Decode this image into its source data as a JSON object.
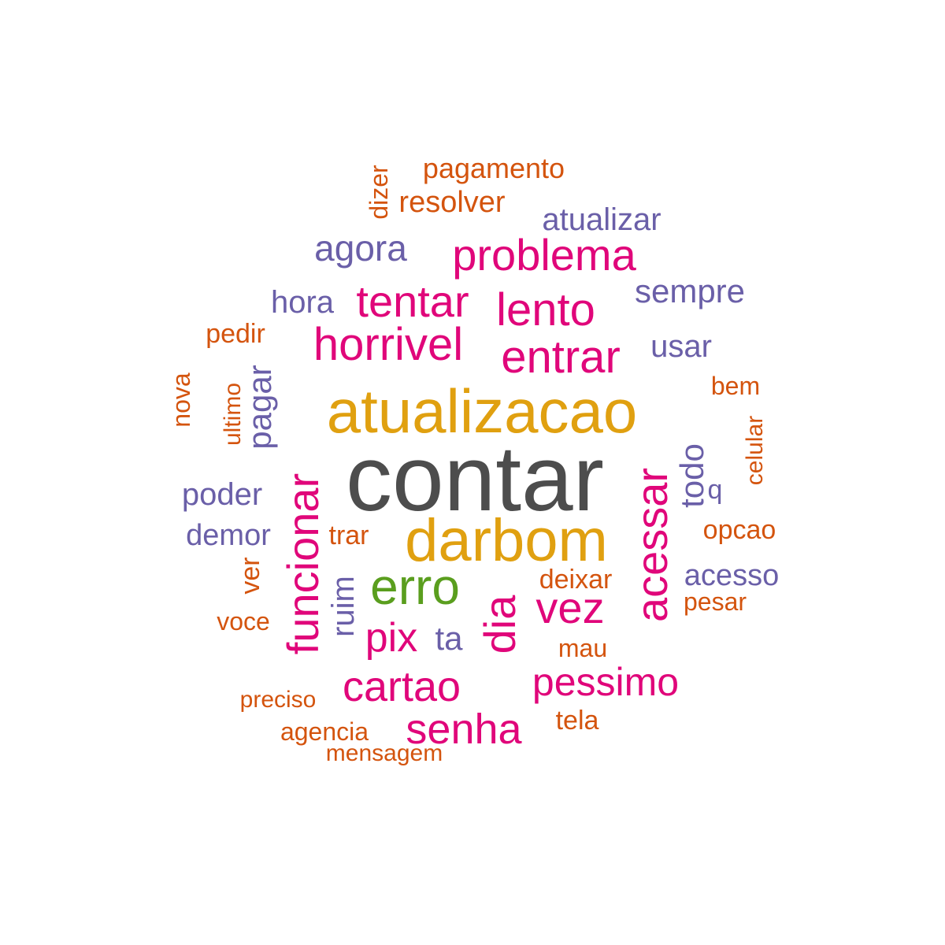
{
  "colors": {
    "gray": "#4d4d4d",
    "gold": "#e0a010",
    "green": "#5a9e1e",
    "magenta": "#e0067a",
    "purple": "#6a5fa8",
    "orange": "#d4540e"
  },
  "words": [
    {
      "text": "contar",
      "color": "gray",
      "vertical": false
    },
    {
      "text": "atualizacao",
      "color": "gold",
      "vertical": false
    },
    {
      "text": "darbom",
      "color": "gold",
      "vertical": false
    },
    {
      "text": "erro",
      "color": "green",
      "vertical": false
    },
    {
      "text": "funcionar",
      "color": "magenta",
      "vertical": true
    },
    {
      "text": "acessar",
      "color": "magenta",
      "vertical": true
    },
    {
      "text": "horrivel",
      "color": "magenta",
      "vertical": false
    },
    {
      "text": "entrar",
      "color": "magenta",
      "vertical": false
    },
    {
      "text": "problema",
      "color": "magenta",
      "vertical": false
    },
    {
      "text": "tentar",
      "color": "magenta",
      "vertical": false
    },
    {
      "text": "lento",
      "color": "magenta",
      "vertical": false
    },
    {
      "text": "vez",
      "color": "magenta",
      "vertical": false
    },
    {
      "text": "dia",
      "color": "magenta",
      "vertical": true
    },
    {
      "text": "pix",
      "color": "magenta",
      "vertical": false
    },
    {
      "text": "cartao",
      "color": "magenta",
      "vertical": false
    },
    {
      "text": "senha",
      "color": "magenta",
      "vertical": false
    },
    {
      "text": "pessimo",
      "color": "magenta",
      "vertical": false
    },
    {
      "text": "agora",
      "color": "purple",
      "vertical": false
    },
    {
      "text": "atualizar",
      "color": "purple",
      "vertical": false
    },
    {
      "text": "sempre",
      "color": "purple",
      "vertical": false
    },
    {
      "text": "usar",
      "color": "purple",
      "vertical": false
    },
    {
      "text": "hora",
      "color": "purple",
      "vertical": false
    },
    {
      "text": "pagar",
      "color": "purple",
      "vertical": true
    },
    {
      "text": "poder",
      "color": "purple",
      "vertical": false
    },
    {
      "text": "demor",
      "color": "purple",
      "vertical": false
    },
    {
      "text": "todo",
      "color": "purple",
      "vertical": true
    },
    {
      "text": "q",
      "color": "purple",
      "vertical": false
    },
    {
      "text": "acesso",
      "color": "purple",
      "vertical": false
    },
    {
      "text": "ruim",
      "color": "purple",
      "vertical": true
    },
    {
      "text": "ta",
      "color": "purple",
      "vertical": false
    },
    {
      "text": "pagamento",
      "color": "orange",
      "vertical": false
    },
    {
      "text": "resolver",
      "color": "orange",
      "vertical": false
    },
    {
      "text": "dizer",
      "color": "orange",
      "vertical": true
    },
    {
      "text": "pedir",
      "color": "orange",
      "vertical": false
    },
    {
      "text": "nova",
      "color": "orange",
      "vertical": true
    },
    {
      "text": "ultimo",
      "color": "orange",
      "vertical": true
    },
    {
      "text": "bem",
      "color": "orange",
      "vertical": false
    },
    {
      "text": "celular",
      "color": "orange",
      "vertical": true
    },
    {
      "text": "opcao",
      "color": "orange",
      "vertical": false
    },
    {
      "text": "trar",
      "color": "orange",
      "vertical": false
    },
    {
      "text": "ver",
      "color": "orange",
      "vertical": true
    },
    {
      "text": "deixar",
      "color": "orange",
      "vertical": false
    },
    {
      "text": "pesar",
      "color": "orange",
      "vertical": false
    },
    {
      "text": "voce",
      "color": "orange",
      "vertical": false
    },
    {
      "text": "mau",
      "color": "orange",
      "vertical": false
    },
    {
      "text": "preciso",
      "color": "orange",
      "vertical": false
    },
    {
      "text": "tela",
      "color": "orange",
      "vertical": false
    },
    {
      "text": "agencia",
      "color": "orange",
      "vertical": false
    },
    {
      "text": "mensagem",
      "color": "orange",
      "vertical": false
    }
  ]
}
